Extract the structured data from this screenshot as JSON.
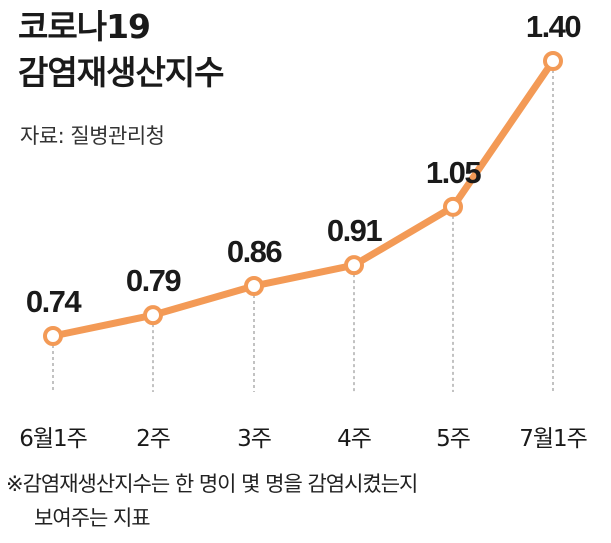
{
  "header": {
    "title_line1": "코로나19",
    "title_line2": "감염재생산지수",
    "source": "자료: 질병관리청"
  },
  "footnote": {
    "line1": "※감염재생산지수는 한 명이 몇 명을 감염시켰는지",
    "line2": "보여주는 지표"
  },
  "colors": {
    "line": "#F39A56",
    "marker_fill": "#FFFFFF",
    "guide": "#9A9A9A",
    "text": "#1A1A1A"
  },
  "chart_data": {
    "type": "line",
    "title": "코로나19 감염재생산지수",
    "categories": [
      "6월1주",
      "2주",
      "3주",
      "4주",
      "5주",
      "7월1주"
    ],
    "series": [
      {
        "values": [
          0.74,
          0.79,
          0.86,
          0.91,
          1.05,
          1.4
        ],
        "labels": [
          "0.74",
          "0.79",
          "0.86",
          "0.91",
          "1.05",
          "1.40"
        ]
      }
    ],
    "xlabel": "",
    "ylabel": "",
    "grid": false,
    "legend": "none"
  }
}
